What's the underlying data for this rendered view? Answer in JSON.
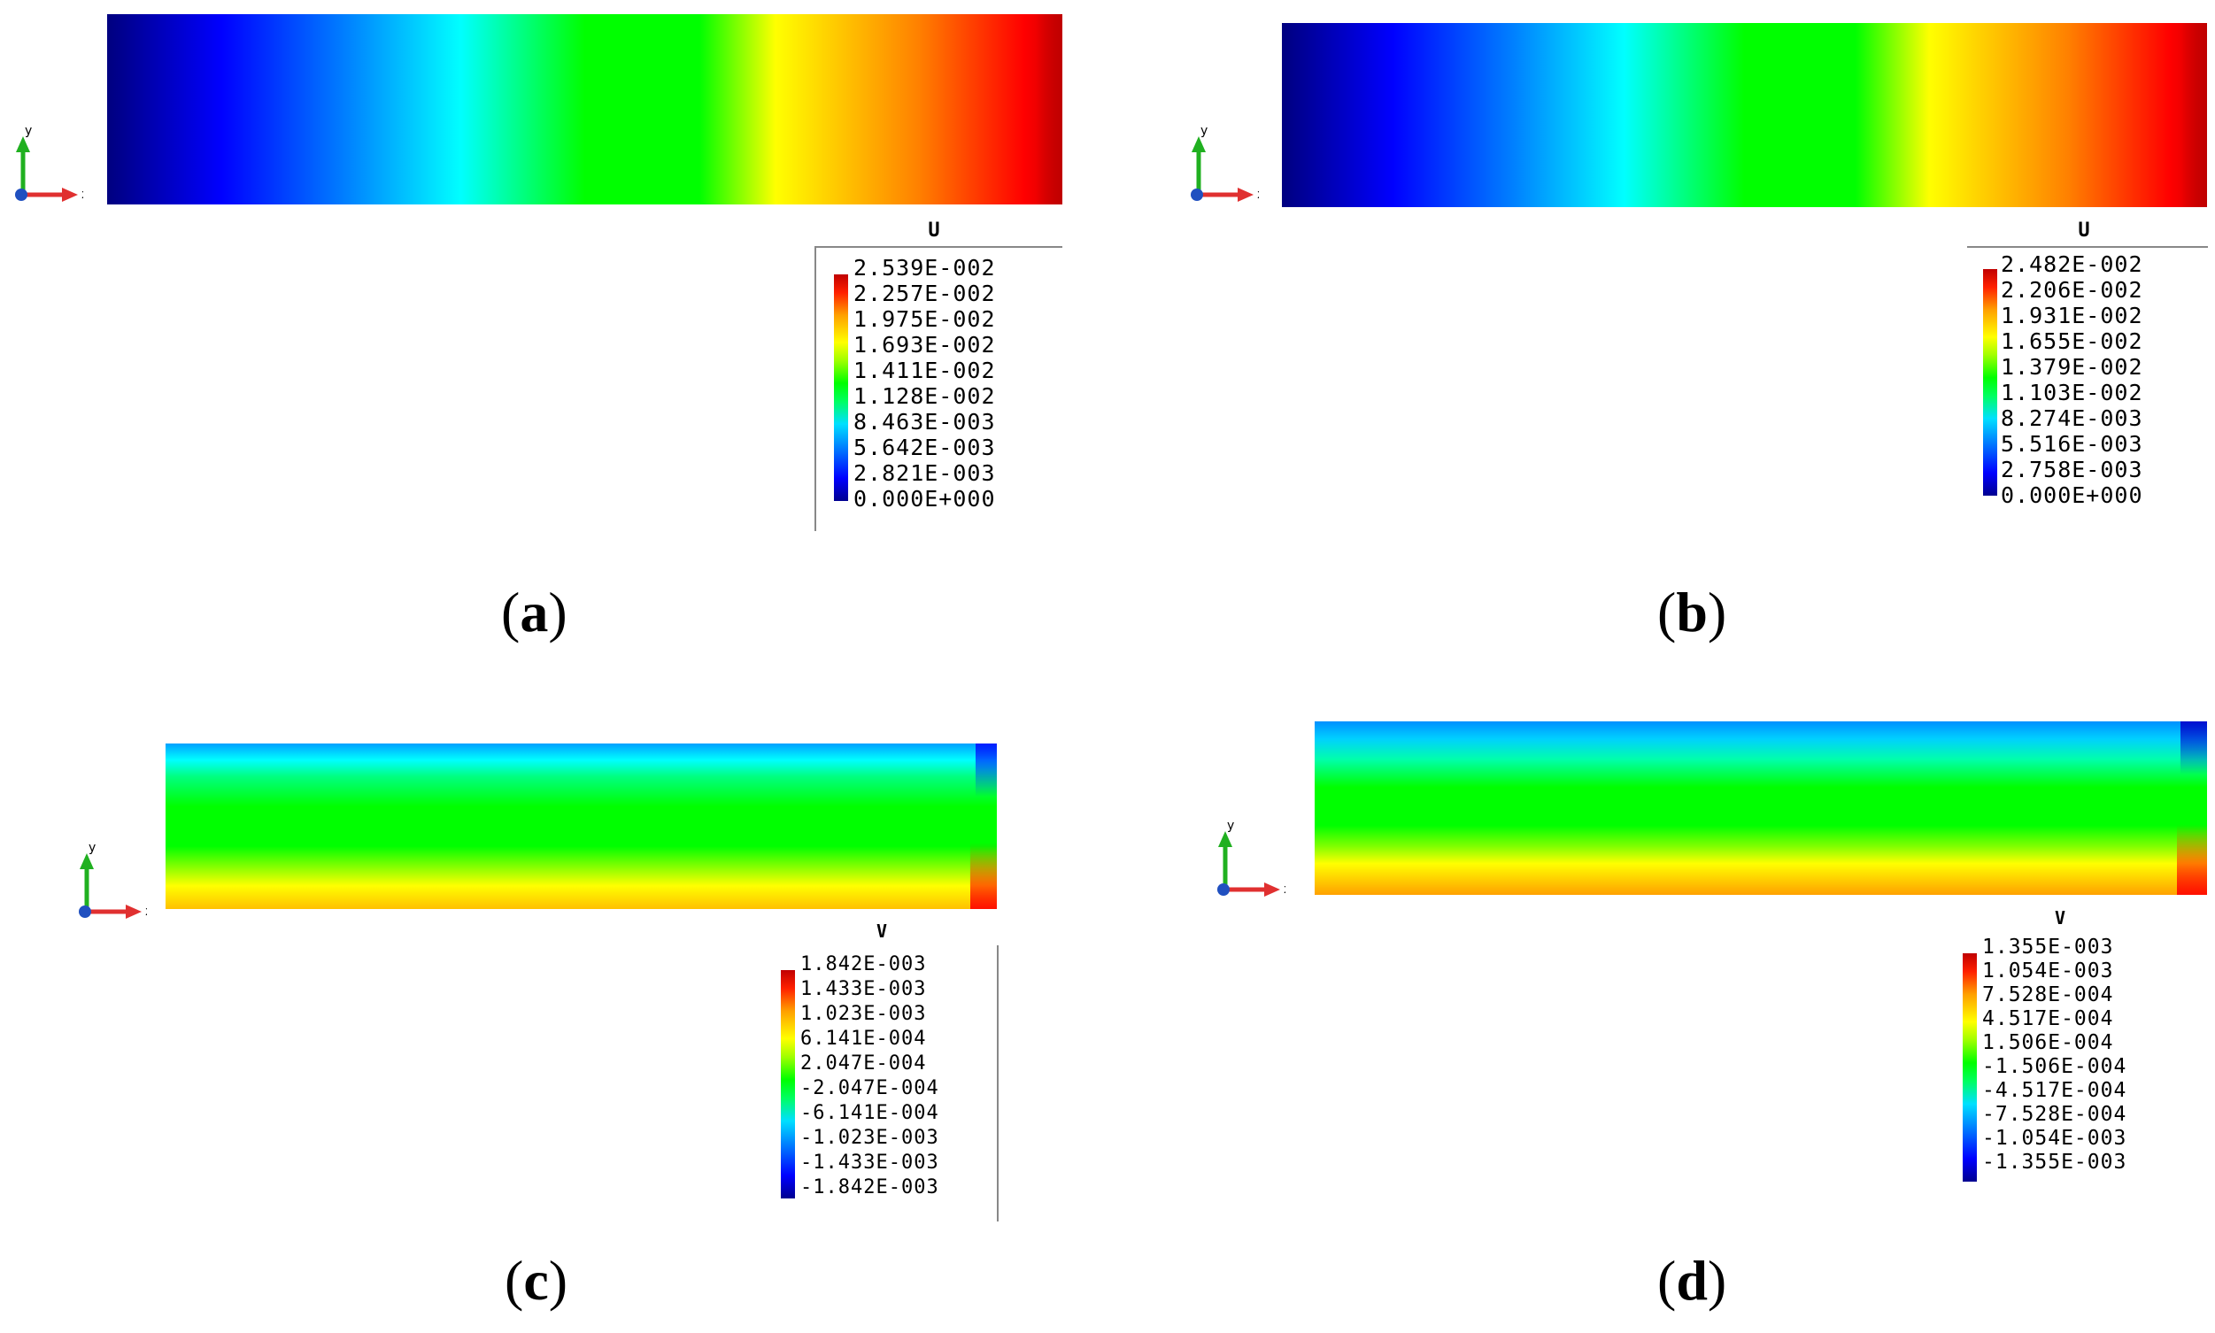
{
  "panels": [
    {
      "id": "a",
      "caption": "a",
      "variable": "U",
      "legend_values": [
        "2.539E-002",
        "2.257E-002",
        "1.975E-002",
        "1.693E-002",
        "1.411E-002",
        "1.128E-002",
        "8.463E-003",
        "5.642E-003",
        "2.821E-003",
        "0.000E+000"
      ],
      "axis_labels": {
        "x": "x",
        "y": "y"
      }
    },
    {
      "id": "b",
      "caption": "b",
      "variable": "U",
      "legend_values": [
        "2.482E-002",
        "2.206E-002",
        "1.931E-002",
        "1.655E-002",
        "1.379E-002",
        "1.103E-002",
        "8.274E-003",
        "5.516E-003",
        "2.758E-003",
        "0.000E+000"
      ],
      "axis_labels": {
        "x": "x",
        "y": "y"
      }
    },
    {
      "id": "c",
      "caption": "c",
      "variable": "V",
      "legend_values": [
        "1.842E-003",
        "1.433E-003",
        "1.023E-003",
        "6.141E-004",
        "2.047E-004",
        "-2.047E-004",
        "-6.141E-004",
        "-1.023E-003",
        "-1.433E-003",
        "-1.842E-003"
      ],
      "axis_labels": {
        "x": "x",
        "y": "y"
      }
    },
    {
      "id": "d",
      "caption": "d",
      "variable": "V",
      "legend_values": [
        "1.355E-003",
        "1.054E-003",
        "7.528E-004",
        "4.517E-004",
        "1.506E-004",
        "-1.506E-004",
        "-4.517E-004",
        "-7.528E-004",
        "-1.054E-003",
        "-1.355E-003"
      ],
      "axis_labels": {
        "x": "x",
        "y": "y"
      }
    }
  ],
  "colors": {
    "min": "#00007f",
    "low": "#0000ff",
    "mid_low": "#00ffff",
    "mid": "#00ff00",
    "mid_high": "#ffff00",
    "high": "#ff8000",
    "max": "#d00000",
    "axis_x": "#e03030",
    "axis_y": "#20b020",
    "axis_z": "#2050c0"
  }
}
